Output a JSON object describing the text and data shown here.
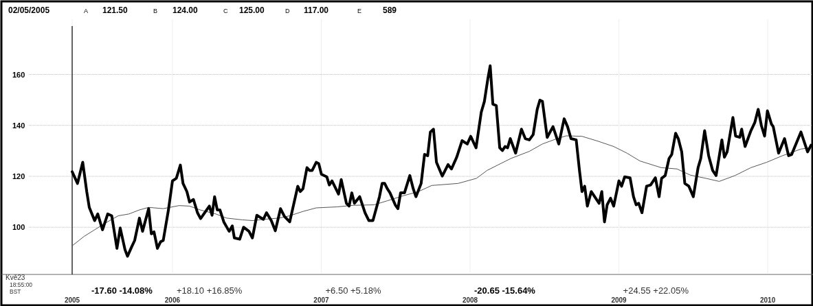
{
  "chart_data": {
    "type": "line",
    "title": "02/05/2005",
    "annotations": [
      "A",
      "121.50",
      "B",
      "124.00",
      "C",
      "125.00",
      "D",
      "117.00",
      "E",
      "589",
      "-17.60 -14.08%",
      "+18.10 +16.85%",
      "+6.50 +5.18%",
      "-20.65 -15.64%",
      "+24.55 +22.05%",
      "Kvě23",
      "18:55:00",
      "BST"
    ],
    "xlim": [
      2005.326,
      2010.295
    ],
    "ylim": [
      82,
      179
    ],
    "xticks": [
      {
        "value": 2005.326,
        "label": "2005"
      },
      2006,
      2007,
      2008,
      2009,
      2010
    ],
    "yticks": [
      100,
      120,
      140,
      160
    ],
    "grid": true,
    "ref_lines": [
      {
        "axis": "x",
        "value": 2005.326,
        "color": "#000000"
      }
    ],
    "series": [
      {
        "color": "#000000",
        "x": [
          2005.326,
          2005.362,
          2005.397,
          2005.424,
          2005.441,
          2005.477,
          2005.498,
          2005.53,
          2005.565,
          2005.592,
          2005.627,
          2005.649,
          2005.681,
          2005.698,
          2005.725,
          2005.746,
          2005.778,
          2005.799,
          2005.84,
          2005.858,
          2005.876,
          2005.899,
          2005.92,
          2005.938,
          2005.973,
          2006.0,
          2006.026,
          2006.053,
          2006.071,
          2006.097,
          2006.115,
          2006.141,
          2006.168,
          2006.189,
          2006.248,
          2006.266,
          2006.283,
          2006.301,
          2006.319,
          2006.345,
          2006.381,
          2006.402,
          2006.416,
          2006.452,
          2006.478,
          2006.514,
          2006.537,
          2006.567,
          2006.611,
          2006.632,
          2006.664,
          2006.691,
          2006.726,
          2006.753,
          2006.788,
          2006.842,
          2006.859,
          2006.877,
          2006.904,
          2006.921,
          2006.939,
          2006.966,
          2006.983,
          2007.001,
          2007.037,
          2007.054,
          2007.072,
          2007.116,
          2007.134,
          2007.169,
          2007.187,
          2007.205,
          2007.223,
          2007.258,
          2007.294,
          2007.32,
          2007.347,
          2007.391,
          2007.409,
          2007.426,
          2007.444,
          2007.462,
          2007.497,
          2007.515,
          2007.533,
          2007.559,
          2007.595,
          2007.618,
          2007.636,
          2007.671,
          2007.694,
          2007.715,
          2007.733,
          2007.754,
          2007.774,
          2007.813,
          2007.852,
          2007.875,
          2007.91,
          2007.946,
          2007.981,
          2008.004,
          2008.04,
          2008.075,
          2008.096,
          2008.119,
          2008.135,
          2008.153,
          2008.176,
          2008.199,
          2008.217,
          2008.235,
          2008.252,
          2008.27,
          2008.306,
          2008.345,
          2008.371,
          2008.398,
          2008.424,
          2008.451,
          2008.469,
          2008.486,
          2008.518,
          2008.557,
          2008.596,
          2008.632,
          2008.655,
          2008.678,
          2008.713,
          2008.735,
          2008.752,
          2008.77,
          2008.788,
          2008.814,
          2008.844,
          2008.867,
          2008.885,
          2008.903,
          2008.921,
          2008.944,
          2008.965,
          2009.0,
          2009.018,
          2009.039,
          2009.075,
          2009.098,
          2009.116,
          2009.133,
          2009.155,
          2009.186,
          2009.213,
          2009.245,
          2009.27,
          2009.287,
          2009.311,
          2009.337,
          2009.355,
          2009.381,
          2009.399,
          2009.422,
          2009.443,
          2009.47,
          2009.5,
          2009.532,
          2009.55,
          2009.576,
          2009.603,
          2009.63,
          2009.653,
          2009.692,
          2009.709,
          2009.727,
          2009.766,
          2009.784,
          2009.812,
          2009.825,
          2009.848,
          2009.887,
          2009.913,
          2009.936,
          2009.957,
          2009.979,
          2009.998,
          2010.025,
          2010.037,
          2010.073,
          2010.113,
          2010.14,
          2010.161,
          2010.223,
          2010.25,
          2010.268,
          2010.291
        ],
        "values": [
          121.8,
          117.2,
          125.5,
          114,
          107.8,
          102.6,
          105.2,
          99,
          105.2,
          104.5,
          91.7,
          99.7,
          91.2,
          88.6,
          92.2,
          94.8,
          103.6,
          98.4,
          107.3,
          97.4,
          98.2,
          91.7,
          94.3,
          94.8,
          106.8,
          118.2,
          119.2,
          124.4,
          117.2,
          114,
          109.9,
          110.9,
          105.7,
          103.4,
          108.3,
          104.7,
          112,
          106.8,
          106.8,
          102.1,
          98.4,
          100.5,
          95.8,
          95.3,
          100,
          98.4,
          95.8,
          104.7,
          103.1,
          105.7,
          102.6,
          98.6,
          107.3,
          104.2,
          102.1,
          116.1,
          114,
          115.1,
          123.4,
          122.3,
          122.3,
          125.5,
          125,
          120.8,
          119.8,
          116.6,
          118.2,
          113,
          118.7,
          109.4,
          108.3,
          113.5,
          109.4,
          112,
          105.7,
          102.6,
          102.6,
          112,
          117.2,
          117.2,
          115.1,
          113.5,
          108.8,
          107.3,
          113.5,
          113.5,
          120.3,
          115.1,
          112,
          117.2,
          128.6,
          128.1,
          137.4,
          138.5,
          125.5,
          120.1,
          124.6,
          122.9,
          127.5,
          134,
          132.7,
          135.7,
          131.2,
          145.2,
          149.4,
          158.2,
          163.4,
          148.3,
          147.8,
          131.2,
          130.1,
          131.7,
          131.2,
          134.8,
          129.1,
          138.5,
          134.8,
          134.3,
          136.4,
          146.3,
          149.9,
          149.4,
          135.3,
          139.5,
          132.7,
          142.6,
          139.5,
          134.8,
          134.3,
          122.3,
          114,
          116.1,
          108.3,
          114,
          111.4,
          109.4,
          114,
          102.1,
          108.8,
          111.4,
          108.3,
          118.2,
          116.1,
          119.8,
          119.4,
          112,
          108.8,
          109.4,
          105.7,
          116.1,
          116.6,
          119.4,
          112,
          119.2,
          120.3,
          127,
          128.6,
          136.9,
          134.8,
          129.6,
          117.2,
          116.1,
          112,
          123.4,
          127,
          137.9,
          128.1,
          122.3,
          120.3,
          134.3,
          127.5,
          129.6,
          143.1,
          135.8,
          135.3,
          138.5,
          131.7,
          137.9,
          141.1,
          146.3,
          140,
          135.8,
          145.7,
          140.5,
          139.5,
          129.1,
          134.8,
          128.1,
          128.6,
          137.4,
          132.7,
          129.6,
          132.2
        ]
      },
      {
        "color": "#555555",
        "x": [
          2005.326,
          2005.406,
          2005.477,
          2005.548,
          2005.636,
          2005.707,
          2005.778,
          2005.84,
          2005.938,
          2006.044,
          2006.115,
          2006.186,
          2006.292,
          2006.363,
          2006.469,
          2006.54,
          2006.611,
          2006.718,
          2006.788,
          2006.877,
          2006.966,
          2007.107,
          2007.214,
          2007.355,
          2007.444,
          2007.547,
          2007.653,
          2007.742,
          2007.919,
          2008.043,
          2008.114,
          2008.185,
          2008.274,
          2008.398,
          2008.486,
          2008.575,
          2008.646,
          2008.752,
          2008.859,
          2008.965,
          2009.054,
          2009.142,
          2009.284,
          2009.39,
          2009.479,
          2009.585,
          2009.674,
          2009.78,
          2009.887,
          2009.993,
          2010.099,
          2010.223,
          2010.285
        ],
        "values": [
          92.7,
          96.4,
          99,
          101.6,
          104.5,
          105.2,
          106.8,
          107.8,
          107.3,
          108.5,
          108.3,
          106.8,
          105.2,
          103.6,
          102.9,
          102.6,
          103.1,
          103.6,
          104.5,
          106.2,
          107.6,
          108,
          108.6,
          108.8,
          110.4,
          112.3,
          114,
          116.4,
          117.2,
          119.2,
          122.3,
          124.4,
          127,
          129.8,
          132.7,
          134.6,
          135.9,
          135.7,
          133.8,
          131.7,
          129.1,
          126,
          123.4,
          122.9,
          120.5,
          119.2,
          118,
          120.3,
          123.4,
          125.5,
          128.1,
          130.7,
          131.2
        ]
      }
    ]
  }
}
